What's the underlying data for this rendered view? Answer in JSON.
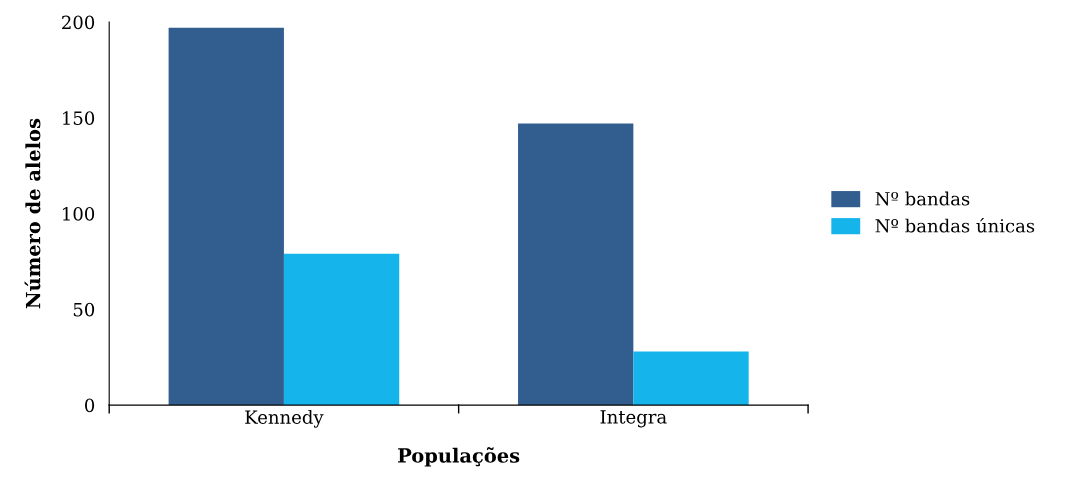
{
  "chart_data": {
    "type": "bar",
    "xlabel": "Populações",
    "ylabel": "Número de alelos",
    "categories": [
      "Kennedy",
      "Integra"
    ],
    "series": [
      {
        "name": "Nº bandas",
        "color": "#325d8f",
        "values": [
          197,
          147
        ]
      },
      {
        "name": "Nº bandas únicas",
        "color": "#15b4ea",
        "values": [
          79,
          28
        ]
      }
    ],
    "ylim": [
      0,
      200
    ],
    "yticks": [
      0,
      50,
      100,
      150,
      200
    ],
    "grid": false,
    "legend": "right"
  }
}
